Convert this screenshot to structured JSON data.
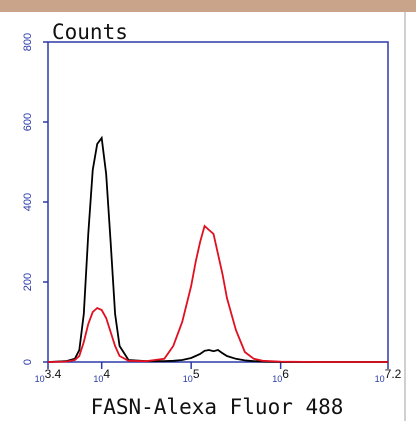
{
  "chart_data": {
    "type": "line",
    "title": "Counts",
    "x_label": "FASN-Alexa Fluor 488",
    "x": [
      3.4,
      3.6,
      3.7,
      3.75,
      3.8,
      3.85,
      3.9,
      3.95,
      4.0,
      4.05,
      4.1,
      4.15,
      4.2,
      4.3,
      4.5,
      4.7,
      4.8,
      4.9,
      5.0,
      5.05,
      5.1,
      5.15,
      5.2,
      5.25,
      5.3,
      5.35,
      5.4,
      5.5,
      5.6,
      5.7,
      5.8,
      6.0,
      6.4,
      7.2
    ],
    "series": [
      {
        "color": "#000000",
        "values": [
          0,
          2,
          8,
          30,
          120,
          320,
          480,
          545,
          560,
          470,
          300,
          120,
          40,
          5,
          2,
          2,
          3,
          5,
          10,
          15,
          20,
          28,
          30,
          27,
          30,
          22,
          15,
          8,
          4,
          2,
          1,
          0,
          0,
          0
        ]
      },
      {
        "color": "#e01020",
        "values": [
          0,
          1,
          5,
          15,
          50,
          95,
          125,
          135,
          130,
          110,
          75,
          40,
          15,
          3,
          2,
          8,
          40,
          100,
          190,
          250,
          300,
          340,
          330,
          320,
          270,
          220,
          160,
          80,
          25,
          8,
          3,
          1,
          0,
          0
        ]
      }
    ],
    "xlim": [
      3.4,
      7.2
    ],
    "xticks": [
      {
        "value": 3.4,
        "label": "10^3.4"
      },
      {
        "value": 4,
        "label": "10^4"
      },
      {
        "value": 5,
        "label": "10^5"
      },
      {
        "value": 6,
        "label": "10^6"
      },
      {
        "value": 7.2,
        "label": "10^7.2"
      }
    ],
    "ylim": [
      0,
      800
    ],
    "yticks": [
      0,
      200,
      400,
      600,
      800
    ],
    "axis_color": "#2b3aa8"
  }
}
